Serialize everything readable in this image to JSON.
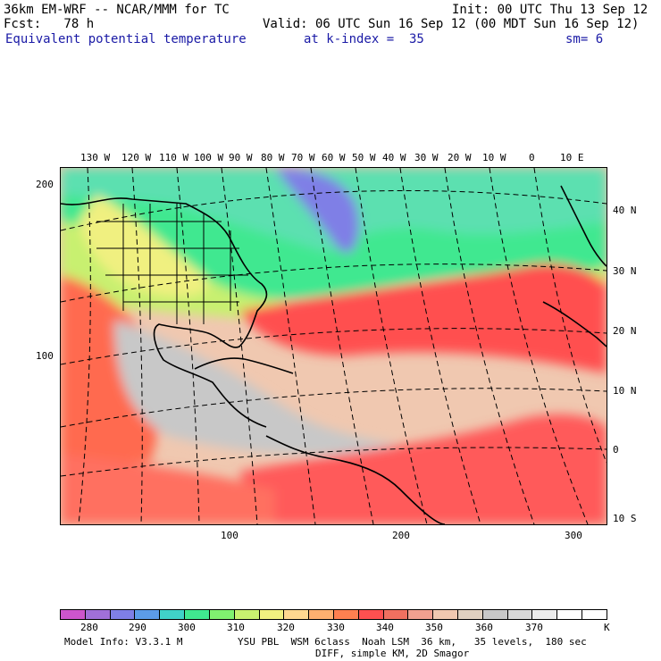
{
  "header": {
    "model": "36km EM-WRF -- NCAR/MMM for TC",
    "init": "Init: 00 UTC Thu 13 Sep 12",
    "fcst": "Fcst:   78 h",
    "valid": "Valid: 06 UTC Sun 16 Sep 12 (00 MDT Sun 16 Sep 12)",
    "field": "Equivalent potential temperature",
    "level": "at k-index =  35",
    "sm": "sm= 6"
  },
  "map": {
    "lon_labels": [
      "130 W",
      "120 W",
      "110 W",
      "100 W",
      "90 W",
      "80 W",
      "70 W",
      "60 W",
      "50 W",
      "40 W",
      "30 W",
      "20 W",
      "10 W",
      "0",
      "10 E"
    ],
    "lat_labels": [
      "40 N",
      "30 N",
      "20 N",
      "10 N",
      "0",
      "10 S"
    ],
    "grid_y_labels": [
      "200",
      "100"
    ],
    "grid_x_labels": [
      "100",
      "200",
      "300"
    ]
  },
  "colorbar": {
    "labels": [
      "280",
      "290",
      "300",
      "310",
      "320",
      "330",
      "340",
      "350",
      "360",
      "370"
    ],
    "unit": "K",
    "colors": [
      "#cc55cc",
      "#a070d8",
      "#7f7fe6",
      "#5c9ce8",
      "#40d2c8",
      "#40e890",
      "#80f070",
      "#c8f070",
      "#f0f080",
      "#ffd890",
      "#ffb070",
      "#ff8050",
      "#ff5050",
      "#f07060",
      "#f0a090",
      "#f0c8b0",
      "#e0d0c0",
      "#c8c8c8",
      "#d8d8d8",
      "#ececec",
      "#ffffff",
      "#ffffff"
    ]
  },
  "footer": {
    "line1a": "Model Info: V3.3.1 M",
    "line1b": "YSU PBL  WSM 6class  Noah LSM  36 km,   35 levels,  180 sec",
    "line2": "DIFF, simple KM, 2D Smagor"
  }
}
